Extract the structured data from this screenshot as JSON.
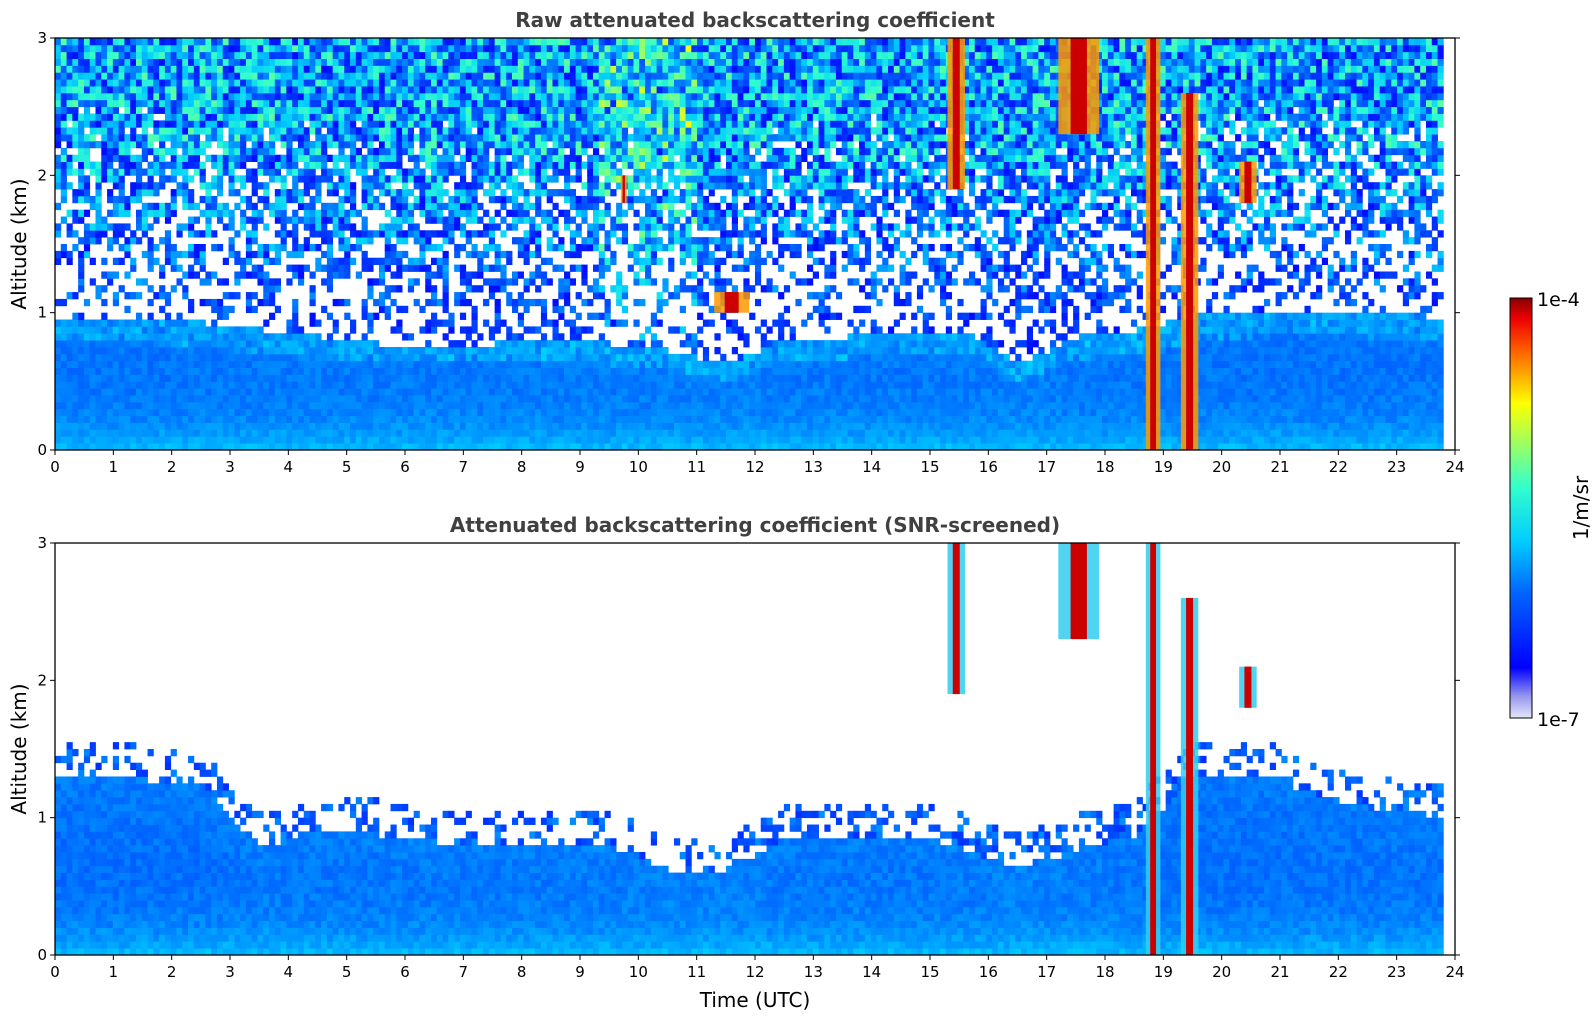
{
  "chart_data": [
    {
      "type": "heatmap",
      "title": "Raw attenuated backscattering coefficient",
      "xlabel": "",
      "ylabel": "Altitude (km)",
      "x_ticks": [
        "0",
        "1",
        "2",
        "3",
        "4",
        "5",
        "6",
        "7",
        "8",
        "9",
        "10",
        "11",
        "12",
        "13",
        "14",
        "15",
        "16",
        "17",
        "18",
        "19",
        "20",
        "21",
        "22",
        "23",
        "24"
      ],
      "y_ticks": [
        "0",
        "1",
        "2",
        "3"
      ],
      "xlim": [
        0,
        24
      ],
      "ylim": [
        0,
        3
      ],
      "screened": false,
      "aerosol_layer_top_km": [
        0.95,
        0.95,
        0.9,
        0.85,
        0.8,
        0.75,
        0.75,
        0.75,
        0.78,
        0.75,
        0.7,
        0.6,
        0.8,
        0.8,
        0.85,
        0.85,
        0.6,
        0.8,
        0.85,
        0.95,
        1.0,
        1.0,
        1.0,
        0.95
      ],
      "cloud_features": [
        {
          "time_start": 18.7,
          "time_end": 18.95,
          "alt_base_km": 0,
          "alt_top_km": 3.0
        },
        {
          "time_start": 19.3,
          "time_end": 19.6,
          "alt_base_km": 0,
          "alt_top_km": 2.6
        },
        {
          "time_start": 17.2,
          "time_end": 17.9,
          "alt_base_km": 2.3,
          "alt_top_km": 3.0
        },
        {
          "time_start": 15.3,
          "time_end": 15.6,
          "alt_base_km": 1.9,
          "alt_top_km": 3.0
        },
        {
          "time_start": 20.3,
          "time_end": 20.6,
          "alt_base_km": 1.8,
          "alt_top_km": 2.1
        },
        {
          "time_start": 11.3,
          "time_end": 11.9,
          "alt_base_km": 1.0,
          "alt_top_km": 1.15
        },
        {
          "time_start": 9.7,
          "time_end": 9.8,
          "alt_base_km": 1.8,
          "alt_top_km": 2.0
        }
      ]
    },
    {
      "type": "heatmap",
      "title": "Attenuated backscattering coefficient (SNR-screened)",
      "xlabel": "Time (UTC)",
      "ylabel": "Altitude (km)",
      "x_ticks": [
        "0",
        "1",
        "2",
        "3",
        "4",
        "5",
        "6",
        "7",
        "8",
        "9",
        "10",
        "11",
        "12",
        "13",
        "14",
        "15",
        "16",
        "17",
        "18",
        "19",
        "20",
        "21",
        "22",
        "23",
        "24"
      ],
      "y_ticks": [
        "0",
        "1",
        "2",
        "3"
      ],
      "xlim": [
        0,
        24
      ],
      "ylim": [
        0,
        3
      ],
      "screened": true,
      "aerosol_layer_top_km": [
        1.3,
        1.25,
        1.2,
        0.75,
        0.9,
        0.85,
        0.8,
        0.8,
        0.78,
        0.75,
        0.6,
        0.6,
        0.85,
        0.85,
        0.85,
        0.75,
        0.6,
        0.75,
        0.85,
        1.3,
        1.3,
        1.15,
        1.05,
        1.0
      ],
      "cloud_features": [
        {
          "time_start": 18.7,
          "time_end": 18.95,
          "alt_base_km": 0,
          "alt_top_km": 3.0
        },
        {
          "time_start": 19.3,
          "time_end": 19.6,
          "alt_base_km": 0,
          "alt_top_km": 2.6
        },
        {
          "time_start": 17.2,
          "time_end": 17.9,
          "alt_base_km": 2.3,
          "alt_top_km": 3.0
        },
        {
          "time_start": 15.3,
          "time_end": 15.6,
          "alt_base_km": 1.9,
          "alt_top_km": 3.0
        },
        {
          "time_start": 20.3,
          "time_end": 20.6,
          "alt_base_km": 1.8,
          "alt_top_km": 2.1
        }
      ]
    }
  ],
  "colorbar": {
    "label": "1/m/sr",
    "max_label": "1e-4",
    "min_label": "1e-7",
    "scale": "log",
    "range": [
      1e-07,
      0.0001
    ],
    "colormap": "jet"
  }
}
